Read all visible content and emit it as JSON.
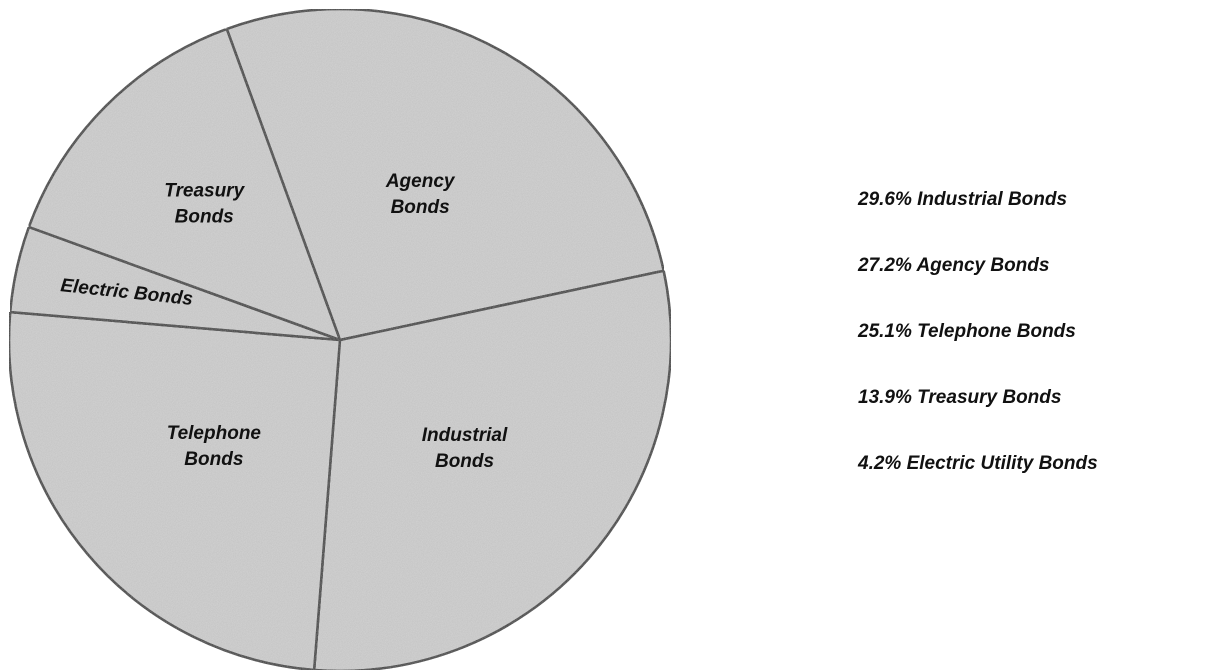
{
  "chart_data": {
    "type": "pie",
    "labels": [
      [
        "Agency",
        "Bonds"
      ],
      [
        "Industrial",
        "Bonds"
      ],
      [
        "Telephone",
        "Bonds"
      ],
      [
        "Electric Bonds"
      ],
      [
        "Treasury",
        "Bonds"
      ]
    ],
    "values": [
      27.2,
      29.6,
      25.1,
      4.2,
      13.9
    ],
    "color": "#d6d6d6",
    "legend": [
      "29.6% Industrial Bonds",
      "27.2% Agency Bonds",
      "25.1% Telephone Bonds",
      "13.9% Treasury Bonds",
      "4.2% Electric Utility Bonds"
    ]
  }
}
